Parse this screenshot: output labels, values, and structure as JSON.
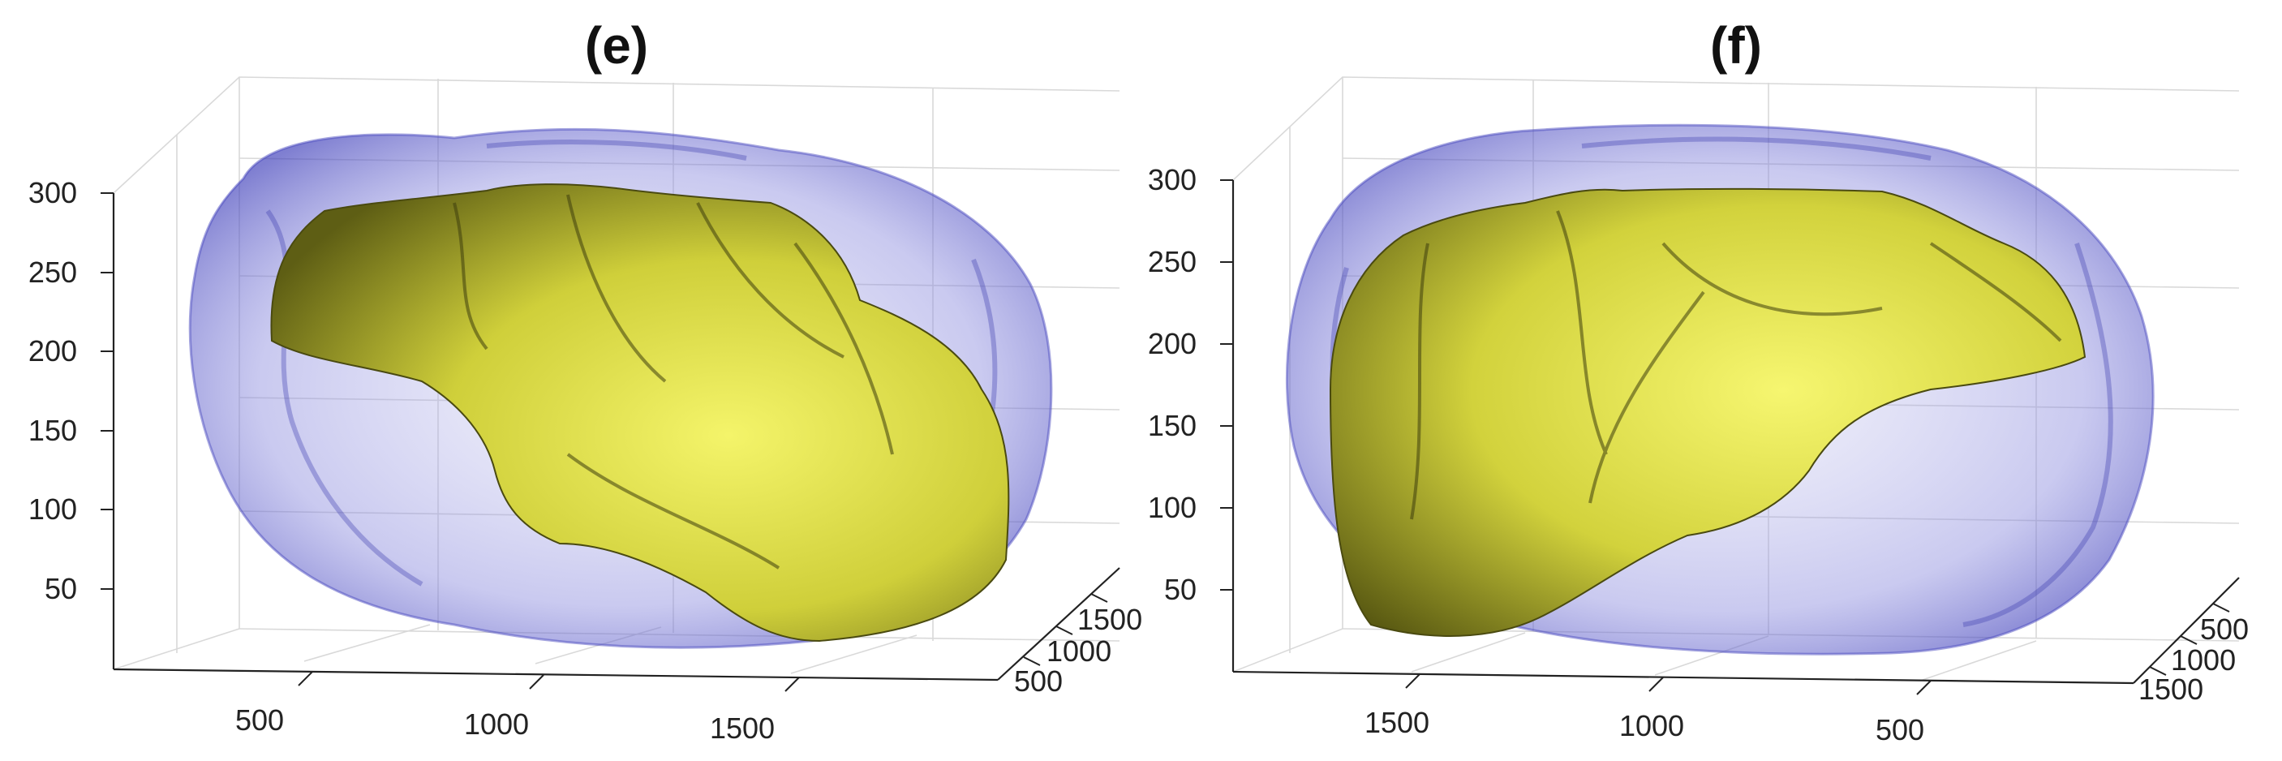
{
  "chart_data": [
    {
      "type": "3d-surface",
      "title": "(e)",
      "z_ticks": [
        "300",
        "250",
        "200",
        "150",
        "100",
        "50"
      ],
      "x_ticks": [
        "500",
        "1000",
        "1500"
      ],
      "y_ticks": [
        "1500",
        "1000",
        "500"
      ],
      "grid": true,
      "inner_surface_color": "#e6e64a",
      "outer_surface_color": "#5a5ac8"
    },
    {
      "type": "3d-surface",
      "title": "(f)",
      "z_ticks": [
        "300",
        "250",
        "200",
        "150",
        "100",
        "50"
      ],
      "x_ticks": [
        "1500",
        "1000",
        "500"
      ],
      "y_ticks": [
        "500",
        "1000",
        "1500"
      ],
      "grid": true,
      "inner_surface_color": "#e6e64a",
      "outer_surface_color": "#5a5ac8"
    }
  ]
}
